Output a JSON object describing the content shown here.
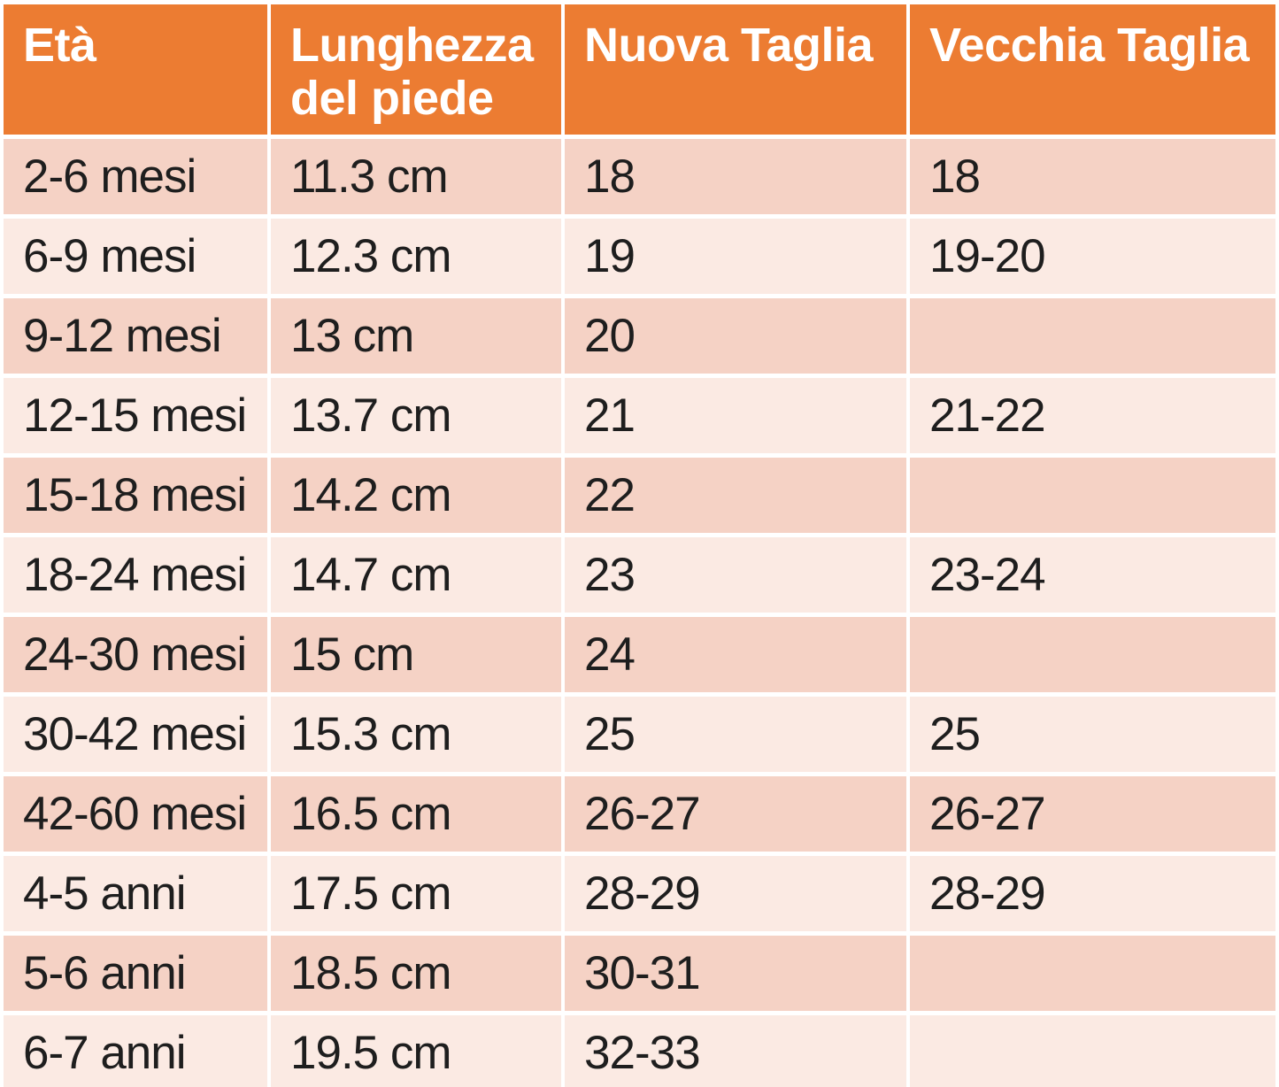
{
  "colors": {
    "header_bg": "#EC7C32",
    "header_text": "#FFFFFF",
    "row_odd_bg": "#F5D2C5",
    "row_even_bg": "#FBEAE3",
    "body_text": "#1E1E1E",
    "gap": "#FFFFFF"
  },
  "chart_data": {
    "type": "table",
    "legend_position": "none",
    "grid": "banded-rows-with-white-gutters",
    "columns": [
      "Età",
      "Lunghezza del piede",
      "Nuova Taglia",
      "Vecchia Taglia"
    ],
    "rows": [
      [
        "2-6 mesi",
        "11.3 cm",
        "18",
        "18"
      ],
      [
        "6-9 mesi",
        "12.3 cm",
        "19",
        "19-20"
      ],
      [
        "9-12 mesi",
        "13 cm",
        "20",
        ""
      ],
      [
        "12-15 mesi",
        "13.7 cm",
        "21",
        "21-22"
      ],
      [
        "15-18 mesi",
        "14.2 cm",
        "22",
        ""
      ],
      [
        "18-24 mesi",
        "14.7 cm",
        "23",
        "23-24"
      ],
      [
        "24-30 mesi",
        "15 cm",
        "24",
        ""
      ],
      [
        "30-42 mesi",
        "15.3 cm",
        "25",
        "25"
      ],
      [
        "42-60 mesi",
        "16.5 cm",
        "26-27",
        "26-27"
      ],
      [
        "4-5 anni",
        "17.5 cm",
        "28-29",
        "28-29"
      ],
      [
        "5-6 anni",
        "18.5 cm",
        "30-31",
        ""
      ],
      [
        "6-7 anni",
        "19.5 cm",
        "32-33",
        ""
      ]
    ]
  }
}
